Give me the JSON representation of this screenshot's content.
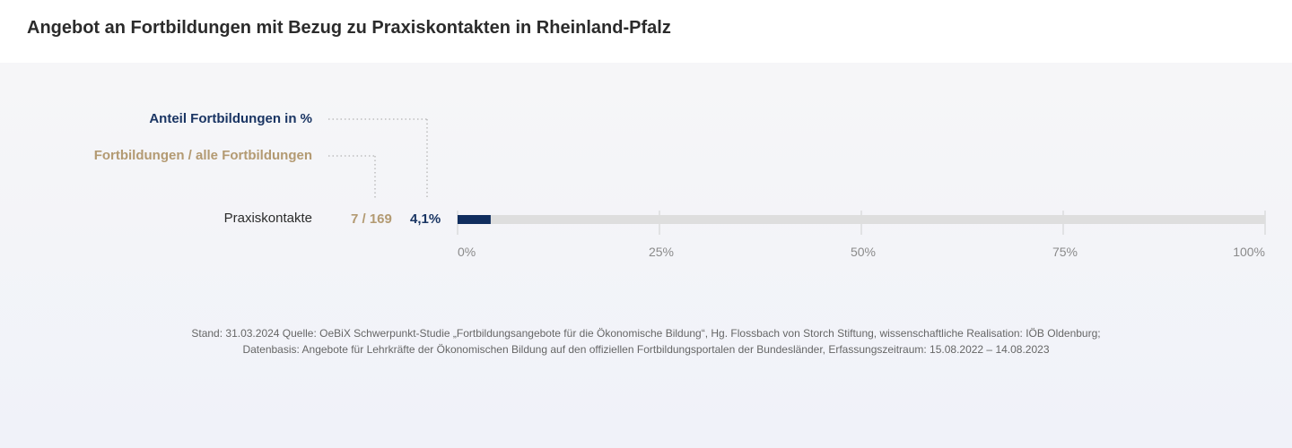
{
  "header": {
    "title": "Angebot an Fortbildungen mit Bezug zu Praxiskontakten in Rheinland-Pfalz"
  },
  "legend": {
    "percent_label": "Anteil Fortbildungen  in %",
    "fraction_label": "Fortbildungen / alle Fortbildungen"
  },
  "colors": {
    "bar_fill": "#102d5e",
    "bar_track": "#dedede",
    "percent_text": "#1a3563",
    "fraction_text": "#b39a72",
    "grid": "#cfcfcf",
    "tick_text": "#8a8a8a"
  },
  "chart_data": {
    "type": "bar",
    "orientation": "horizontal",
    "categories": [
      "Praxiskontakte"
    ],
    "series": [
      {
        "values": [
          4.1
        ]
      }
    ],
    "fraction_labels": [
      "7 / 169"
    ],
    "percent_labels": [
      "4,1%"
    ],
    "xlim": [
      0,
      100
    ],
    "x_ticks": [
      0,
      25,
      50,
      75,
      100
    ],
    "x_tick_labels": [
      "0%",
      "25%",
      "50%",
      "75%",
      "100%"
    ],
    "grid": true
  },
  "footnote": {
    "line1": "Stand: 31.03.2024 Quelle: OeBiX Schwerpunkt-Studie „Fortbildungsangebote für die Ökonomische Bildung“, Hg. Flossbach von Storch Stiftung, wissenschaftliche Realisation: IÖB Oldenburg;",
    "line2": "Datenbasis: Angebote für Lehrkräfte der Ökonomischen Bildung auf den offiziellen Fortbildungsportalen der Bundesländer, Erfassungszeitraum: 15.08.2022 – 14.08.2023"
  }
}
